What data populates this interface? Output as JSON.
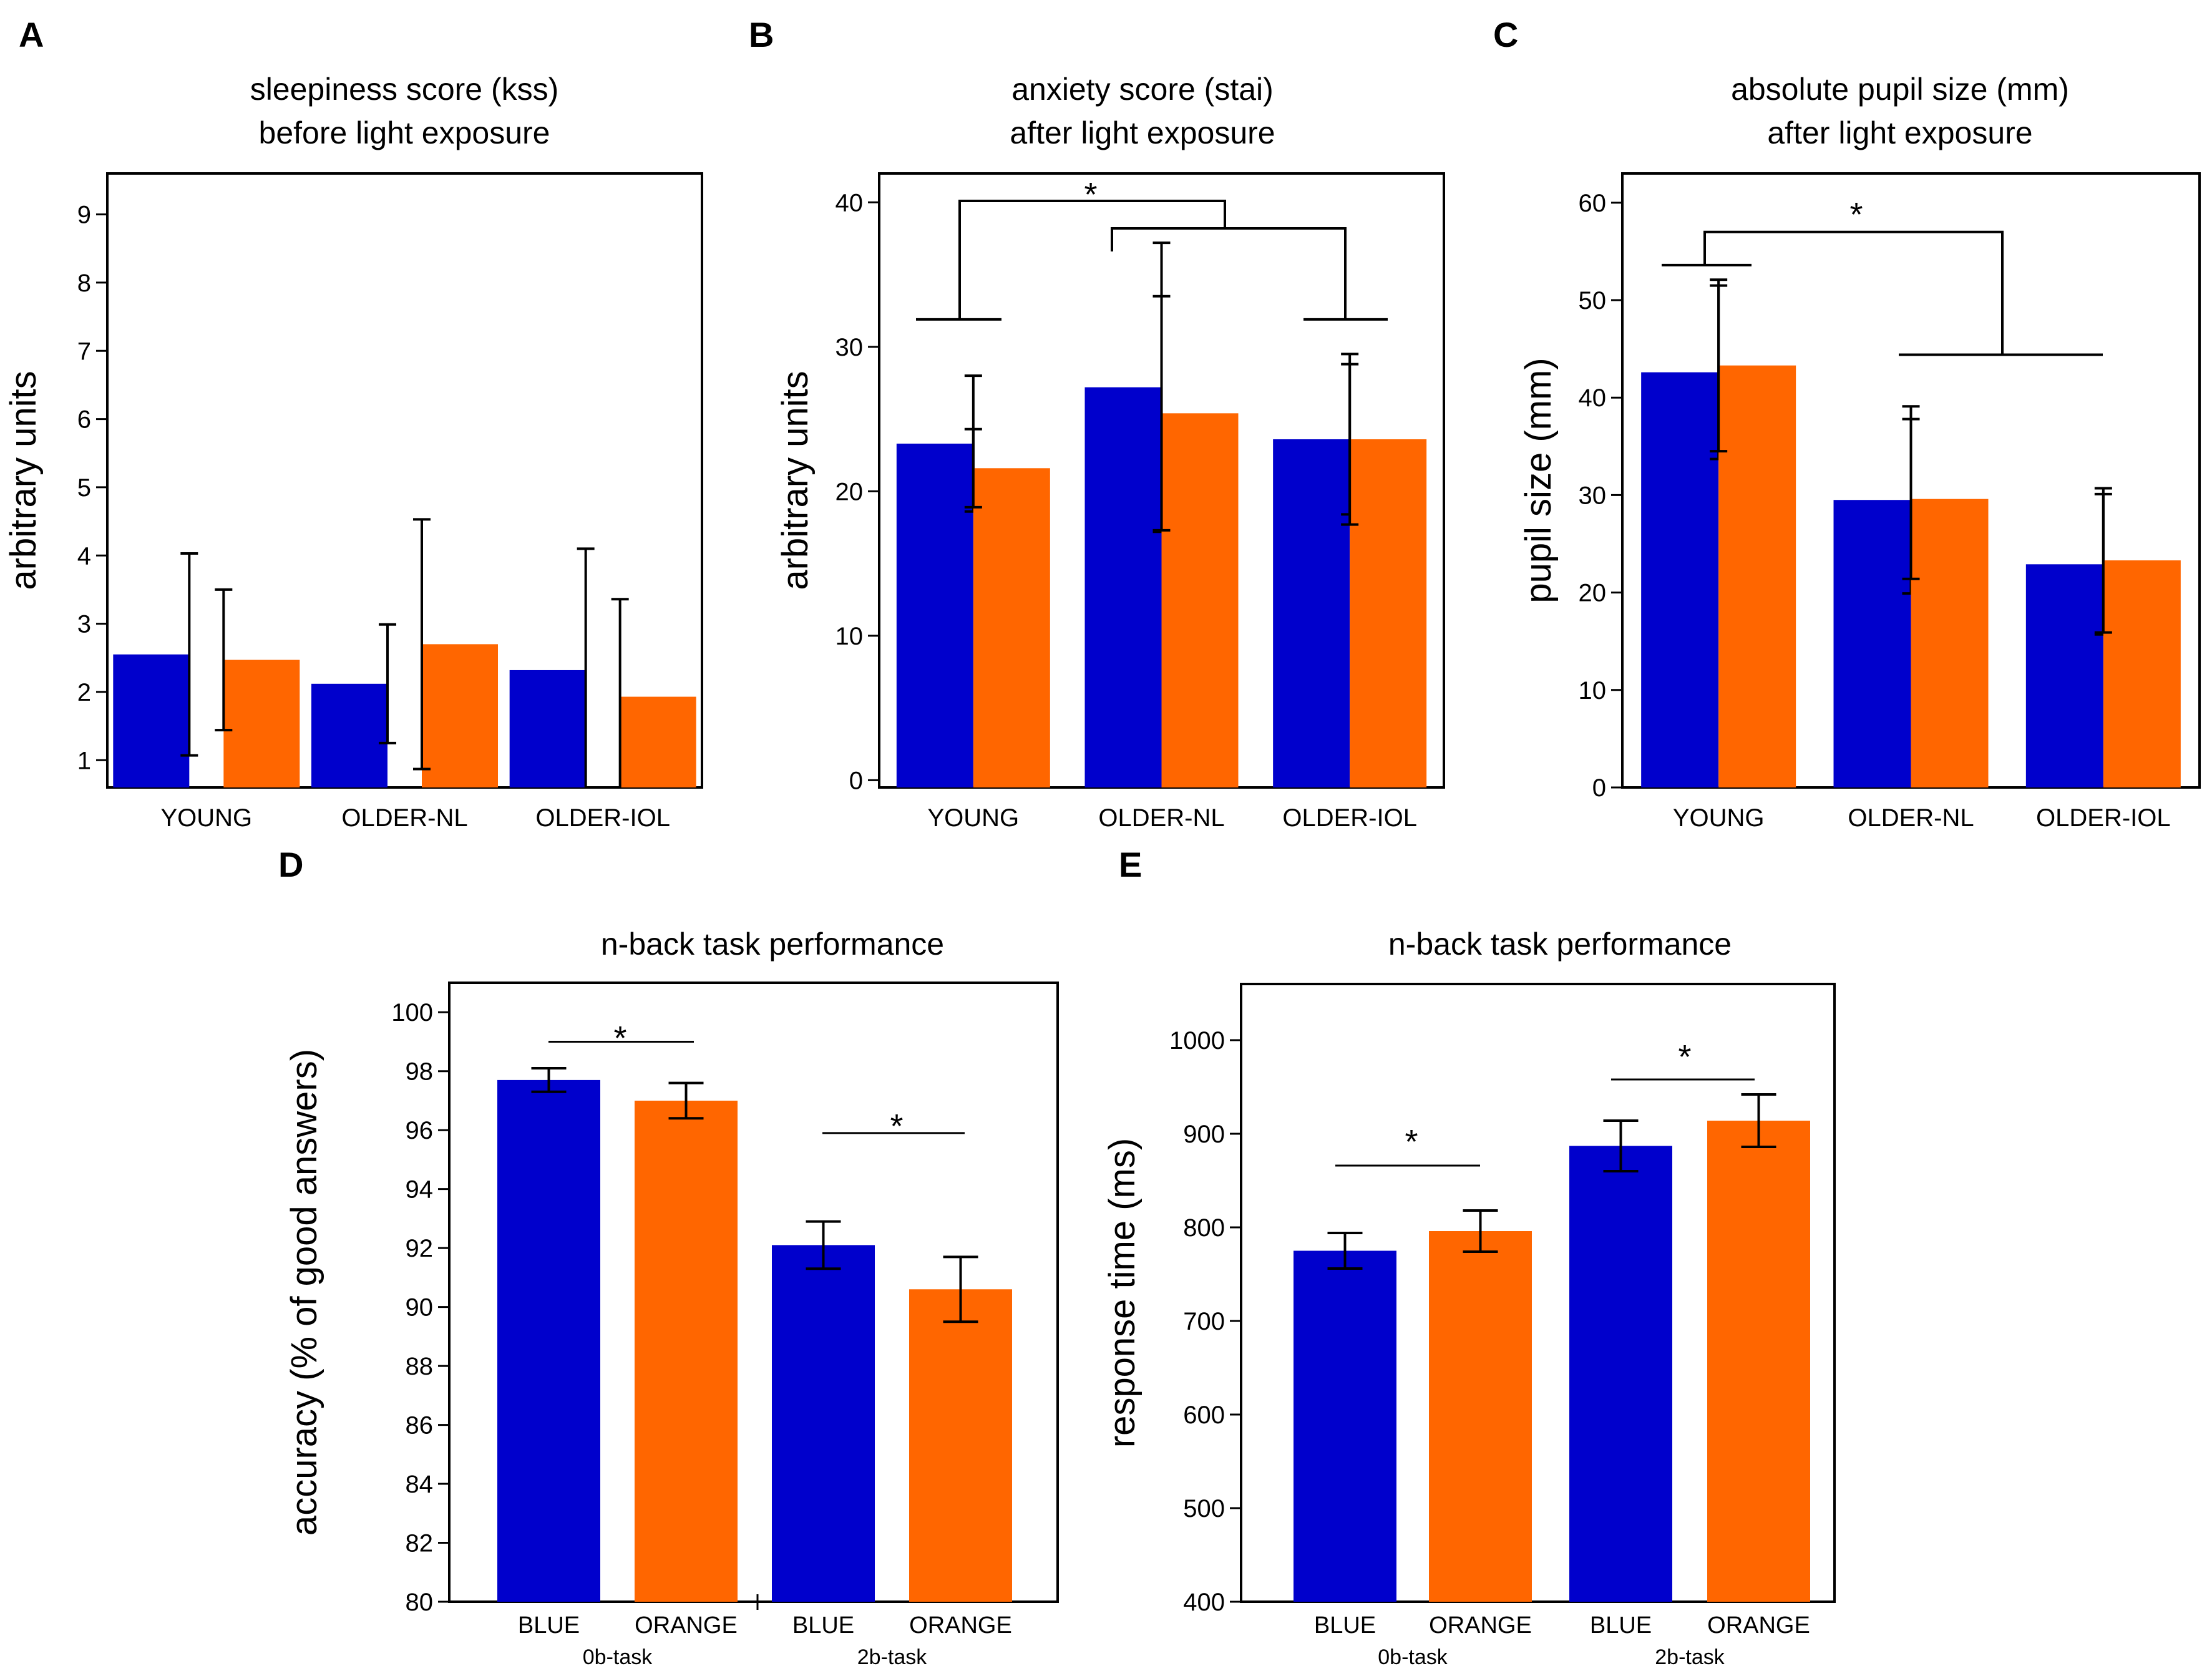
{
  "colors": {
    "blue": "#0000CC",
    "orange": "#FF6600"
  },
  "chart_data": [
    {
      "panel": "A",
      "type": "bar",
      "title": [
        "sleepiness score (kss)",
        "before light exposure"
      ],
      "ylabel": "arbitrary units",
      "ylim": [
        0.6,
        9.6
      ],
      "yticks": [
        1,
        2,
        3,
        4,
        5,
        6,
        7,
        8,
        9
      ],
      "categories": [
        "YOUNG",
        "OLDER-NL",
        "OLDER-IOL"
      ],
      "series": [
        {
          "name": "blue",
          "values": [
            2.55,
            2.12,
            2.32
          ],
          "errors": [
            1.48,
            0.87,
            1.78
          ]
        },
        {
          "name": "orange",
          "values": [
            2.47,
            2.7,
            1.93
          ],
          "errors": [
            1.03,
            1.83,
            1.43
          ]
        }
      ]
    },
    {
      "panel": "B",
      "type": "bar",
      "title": [
        "anxiety score (stai)",
        "after light exposure"
      ],
      "ylabel": "arbitrary units",
      "ylim": [
        -0.5,
        42
      ],
      "yticks": [
        0,
        10,
        20,
        30,
        40
      ],
      "categories": [
        "YOUNG",
        "OLDER-NL",
        "OLDER-IOL"
      ],
      "series": [
        {
          "name": "blue",
          "values": [
            23.3,
            27.2,
            23.6
          ],
          "errors": [
            4.7,
            10.0,
            5.2
          ]
        },
        {
          "name": "orange",
          "values": [
            21.6,
            25.4,
            23.6
          ],
          "errors": [
            2.7,
            8.1,
            5.9
          ]
        }
      ],
      "annotations": [
        "*"
      ]
    },
    {
      "panel": "C",
      "type": "bar",
      "title": [
        "absolute pupil size (mm)",
        "after light exposure"
      ],
      "ylabel": "pupil size (mm)",
      "ylim": [
        0,
        63
      ],
      "yticks": [
        0,
        10,
        20,
        30,
        40,
        50,
        60
      ],
      "categories": [
        "YOUNG",
        "OLDER-NL",
        "OLDER-IOL"
      ],
      "series": [
        {
          "name": "blue",
          "values": [
            42.6,
            29.5,
            22.9
          ],
          "errors": [
            8.9,
            9.6,
            7.2
          ]
        },
        {
          "name": "orange",
          "values": [
            43.3,
            29.6,
            23.3
          ],
          "errors": [
            8.8,
            8.2,
            7.4
          ]
        }
      ],
      "annotations": [
        "*"
      ]
    },
    {
      "panel": "D",
      "type": "bar",
      "title": [
        "n-back task performance"
      ],
      "ylabel": "accuracy (% of good answers)",
      "ylim": [
        80,
        101
      ],
      "yticks": [
        80,
        82,
        84,
        86,
        88,
        90,
        92,
        94,
        96,
        98,
        100
      ],
      "categories": [
        "BLUE",
        "ORANGE",
        "BLUE",
        "ORANGE"
      ],
      "groups": [
        "0b-task",
        "2b-task"
      ],
      "series": [
        {
          "name": "accuracy",
          "values": [
            97.7,
            97.0,
            92.1,
            90.6
          ],
          "errors": [
            0.4,
            0.6,
            0.8,
            1.1
          ]
        }
      ],
      "annotations": [
        "*",
        "*"
      ]
    },
    {
      "panel": "E",
      "type": "bar",
      "title": [
        "n-back task performance"
      ],
      "ylabel": "response time (ms)",
      "ylim": [
        400,
        1060
      ],
      "yticks": [
        400,
        500,
        600,
        700,
        800,
        900,
        1000
      ],
      "categories": [
        "BLUE",
        "ORANGE",
        "BLUE",
        "ORANGE"
      ],
      "groups": [
        "0b-task",
        "2b-task"
      ],
      "series": [
        {
          "name": "response time",
          "values": [
            775,
            796,
            887,
            914
          ],
          "errors": [
            19,
            22,
            27,
            28
          ]
        }
      ],
      "annotations": [
        "*",
        "*"
      ]
    }
  ]
}
